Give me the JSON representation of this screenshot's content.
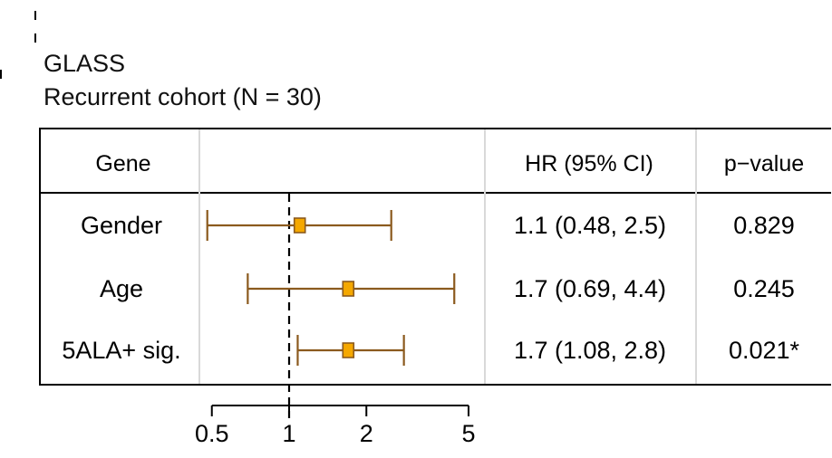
{
  "title": "GLASS",
  "subtitle": "Recurrent cohort (N = 30)",
  "columns": {
    "gene": "Gene",
    "hr": "HR (95% CI)",
    "p": "p−value"
  },
  "colors": {
    "box_fill": "#f5a800",
    "line": "#8b5a1e",
    "header_bg": "#ffffff",
    "grid": "#d9d9d9",
    "reference_line": "#000000"
  },
  "chart_data": {
    "type": "forest",
    "x_scale": "log",
    "reference_value": 1,
    "xlim": [
      0.5,
      5
    ],
    "x_ticks": [
      0.5,
      1,
      2,
      5
    ],
    "rows": [
      {
        "gene": "Gender",
        "hr": 1.1,
        "lo": 0.48,
        "hi": 2.5,
        "hr_text": "1.1 (0.48, 2.5)",
        "p_text": "0.829"
      },
      {
        "gene": "Age",
        "hr": 1.7,
        "lo": 0.69,
        "hi": 4.4,
        "hr_text": "1.7 (0.69, 4.4)",
        "p_text": "0.245"
      },
      {
        "gene": "5ALA+ sig.",
        "hr": 1.7,
        "lo": 1.08,
        "hi": 2.8,
        "hr_text": "1.7 (1.08, 2.8)",
        "p_text": "0.021*"
      }
    ]
  }
}
